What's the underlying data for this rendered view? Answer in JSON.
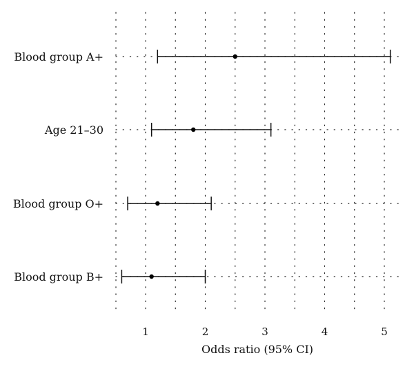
{
  "chart_data": {
    "type": "scatter",
    "subtype": "forest-plot",
    "title": "",
    "xlabel": "Odds ratio (95% CI)",
    "ylabel": "",
    "xlim": [
      0.5,
      5.2
    ],
    "x_ticks": [
      1,
      2,
      3,
      4,
      5
    ],
    "grid": "dotted",
    "legend": "none",
    "categories": [
      "Blood group A+",
      "Age 21–30",
      "Blood group O+",
      "Blood group B+"
    ],
    "series": [
      {
        "points": [
          {
            "label": "Blood group A+",
            "or": 2.5,
            "lower": 1.2,
            "upper": 5.1
          },
          {
            "label": "Age 21–30",
            "or": 1.8,
            "lower": 1.1,
            "upper": 3.1
          },
          {
            "label": "Blood group O+",
            "or": 1.2,
            "lower": 0.7,
            "upper": 2.1
          },
          {
            "label": "Blood group B+",
            "or": 1.1,
            "lower": 0.6,
            "upper": 2.0
          }
        ]
      }
    ],
    "colors": {
      "marks": "#111111",
      "grid": "#222222"
    }
  }
}
